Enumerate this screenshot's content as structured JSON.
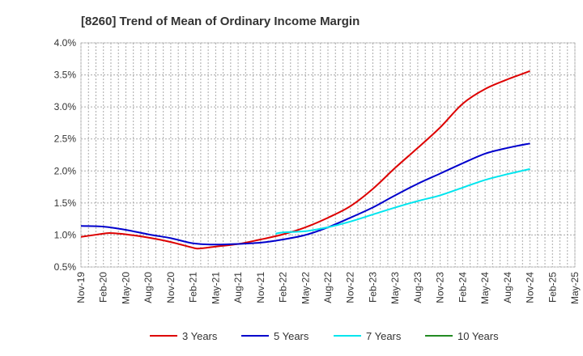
{
  "chart_data": {
    "type": "line",
    "title": "[8260]  Trend of Mean of Ordinary Income Margin",
    "xlabel": "",
    "ylabel": "",
    "ylim": [
      0.5,
      4.0
    ],
    "y_ticks": [
      "0.5%",
      "1.0%",
      "1.5%",
      "2.0%",
      "2.5%",
      "3.0%",
      "3.5%",
      "4.0%"
    ],
    "y_tick_values": [
      0.5,
      1.0,
      1.5,
      2.0,
      2.5,
      3.0,
      3.5,
      4.0
    ],
    "x_ticks": [
      "Nov-19",
      "Feb-20",
      "May-20",
      "Aug-20",
      "Nov-20",
      "Feb-21",
      "May-21",
      "Aug-21",
      "Nov-21",
      "Feb-22",
      "May-22",
      "Aug-22",
      "Nov-22",
      "Feb-23",
      "May-23",
      "Aug-23",
      "Nov-23",
      "Feb-24",
      "May-24",
      "Aug-24",
      "Nov-24",
      "Feb-25",
      "May-25"
    ],
    "grid": true,
    "legend_position": "bottom",
    "series": [
      {
        "name": "3 Years",
        "color": "#dd0000",
        "points": [
          [
            "Nov-19",
            0.97
          ],
          [
            "Feb-20",
            1.02
          ],
          [
            "Mar-20",
            1.03
          ],
          [
            "May-20",
            1.01
          ],
          [
            "Aug-20",
            0.96
          ],
          [
            "Nov-20",
            0.89
          ],
          [
            "Feb-21",
            0.8
          ],
          [
            "Mar-21",
            0.79
          ],
          [
            "May-21",
            0.82
          ],
          [
            "Aug-21",
            0.86
          ],
          [
            "Nov-21",
            0.93
          ],
          [
            "Feb-22",
            1.01
          ],
          [
            "May-22",
            1.12
          ],
          [
            "Aug-22",
            1.27
          ],
          [
            "Nov-22",
            1.45
          ],
          [
            "Feb-23",
            1.72
          ],
          [
            "May-23",
            2.05
          ],
          [
            "Aug-23",
            2.36
          ],
          [
            "Nov-23",
            2.68
          ],
          [
            "Feb-24",
            3.05
          ],
          [
            "May-24",
            3.28
          ],
          [
            "Aug-24",
            3.43
          ],
          [
            "Nov-24",
            3.56
          ]
        ]
      },
      {
        "name": "5 Years",
        "color": "#0000cc",
        "points": [
          [
            "Nov-19",
            1.14
          ],
          [
            "Feb-20",
            1.13
          ],
          [
            "May-20",
            1.08
          ],
          [
            "Aug-20",
            1.01
          ],
          [
            "Nov-20",
            0.95
          ],
          [
            "Feb-21",
            0.87
          ],
          [
            "May-21",
            0.85
          ],
          [
            "Aug-21",
            0.86
          ],
          [
            "Nov-21",
            0.88
          ],
          [
            "Feb-22",
            0.93
          ],
          [
            "May-22",
            1.0
          ],
          [
            "Aug-22",
            1.12
          ],
          [
            "Nov-22",
            1.27
          ],
          [
            "Feb-23",
            1.43
          ],
          [
            "May-23",
            1.62
          ],
          [
            "Aug-23",
            1.8
          ],
          [
            "Nov-23",
            1.96
          ],
          [
            "Feb-24",
            2.12
          ],
          [
            "May-24",
            2.27
          ],
          [
            "Aug-24",
            2.36
          ],
          [
            "Nov-24",
            2.43
          ]
        ]
      },
      {
        "name": "7 Years",
        "color": "#00e5ee",
        "points": [
          [
            "Jan-22",
            1.02
          ],
          [
            "Feb-22",
            1.04
          ],
          [
            "May-22",
            1.06
          ],
          [
            "Aug-22",
            1.12
          ],
          [
            "Nov-22",
            1.21
          ],
          [
            "Feb-23",
            1.32
          ],
          [
            "May-23",
            1.43
          ],
          [
            "Aug-23",
            1.53
          ],
          [
            "Nov-23",
            1.62
          ],
          [
            "Feb-24",
            1.74
          ],
          [
            "May-24",
            1.86
          ],
          [
            "Aug-24",
            1.95
          ],
          [
            "Nov-24",
            2.03
          ]
        ]
      },
      {
        "name": "10 Years",
        "color": "#228b22",
        "points": []
      }
    ]
  }
}
